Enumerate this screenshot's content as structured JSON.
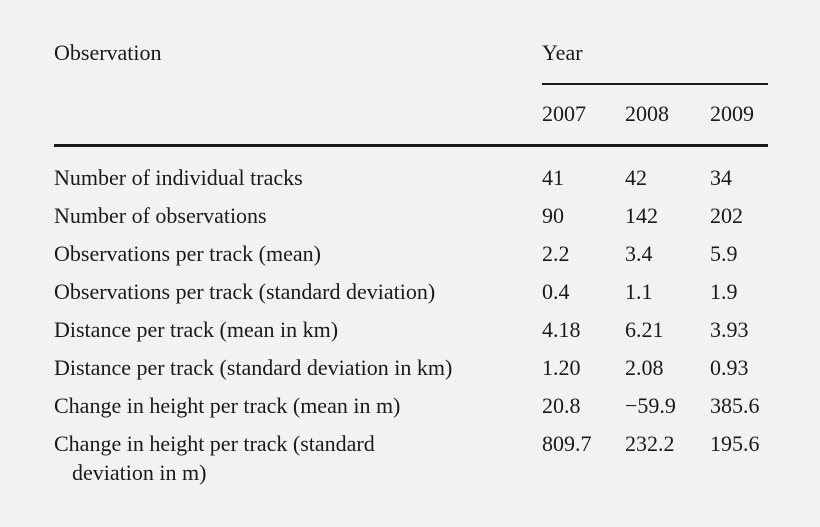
{
  "table": {
    "header": {
      "observation_label": "Observation",
      "year_label": "Year",
      "years": [
        "2007",
        "2008",
        "2009"
      ]
    },
    "rows": [
      {
        "label": "Number of individual tracks",
        "values": [
          "41",
          "42",
          "34"
        ]
      },
      {
        "label": "Number of observations",
        "values": [
          "90",
          "142",
          "202"
        ]
      },
      {
        "label": "Observations per track (mean)",
        "values": [
          "2.2",
          "3.4",
          "5.9"
        ]
      },
      {
        "label": "Observations per track (standard deviation)",
        "values": [
          "0.4",
          "1.1",
          "1.9"
        ]
      },
      {
        "label": "Distance per track (mean in km)",
        "values": [
          "4.18",
          "6.21",
          "3.93"
        ]
      },
      {
        "label": "Distance per track (standard deviation in km)",
        "values": [
          "1.20",
          "2.08",
          "0.93"
        ]
      },
      {
        "label": "Change in height per track (mean in m)",
        "values": [
          "20.8",
          "−59.9",
          "385.6"
        ]
      },
      {
        "label": "Change in height per track (standard",
        "label_cont": "deviation in m)",
        "values": [
          "809.7",
          "232.2",
          "195.6"
        ]
      }
    ]
  }
}
